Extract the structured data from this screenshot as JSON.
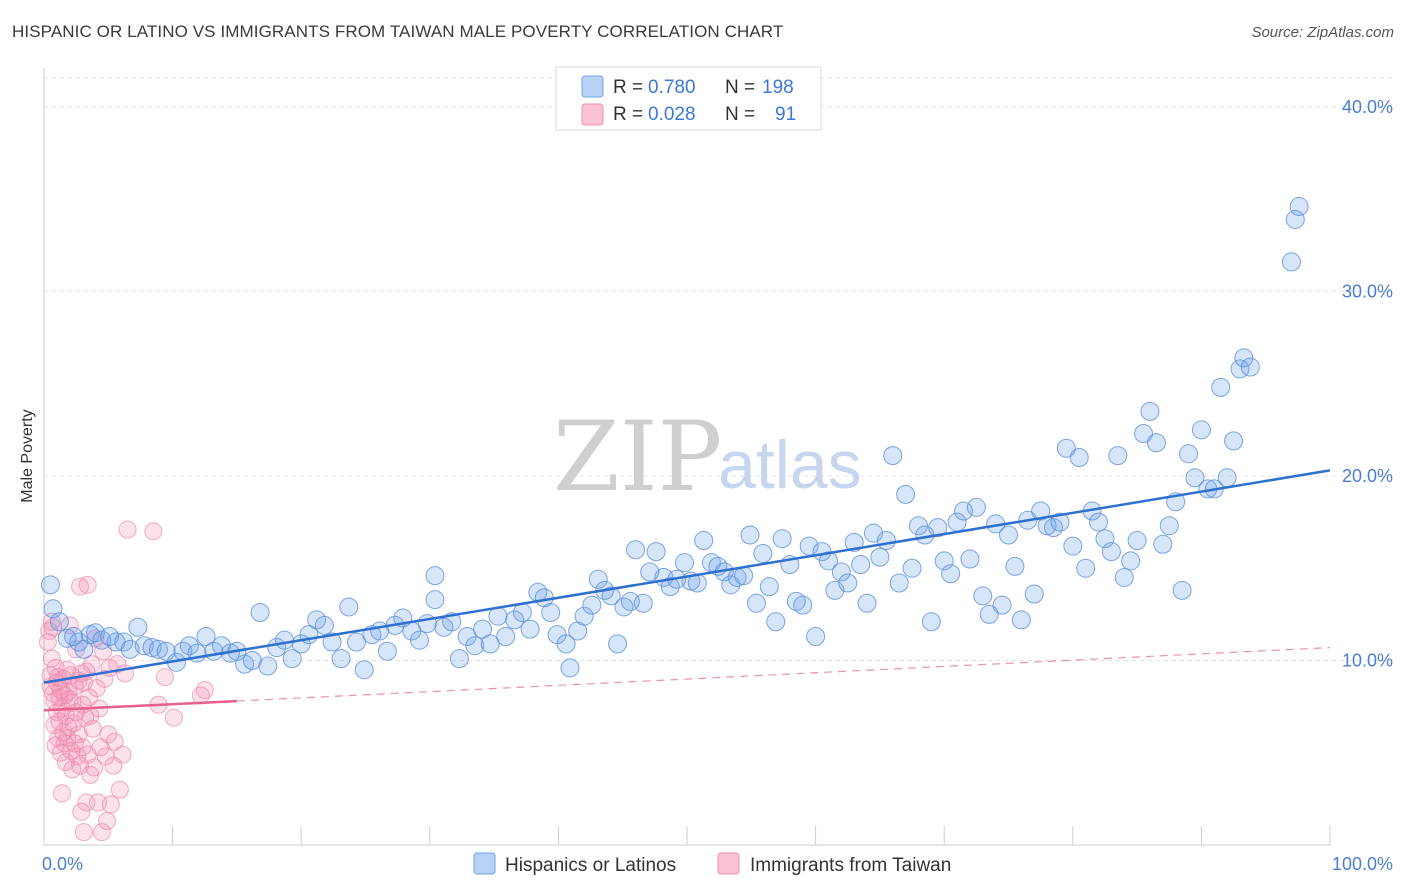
{
  "title": "HISPANIC OR LATINO VS IMMIGRANTS FROM TAIWAN MALE POVERTY CORRELATION CHART",
  "source": "Source: ZipAtlas.com",
  "watermark": {
    "zip": "ZIP",
    "atlas": "atlas"
  },
  "colors": {
    "blue": "#6fa3e8",
    "blue_line": "#2f6fd0",
    "pink": "#f08db0",
    "pink_line": "#e8608e",
    "grid": "#e0e0e0",
    "tick": "#4a7fd0"
  },
  "legend": {
    "rows": [
      {
        "r_label": "R =",
        "r_value": "0.780",
        "n_label": "N =",
        "n_value": "198"
      },
      {
        "r_label": "R =",
        "r_value": "0.028",
        "n_label": "N =",
        "n_value": "91"
      }
    ]
  },
  "chart_data": {
    "type": "scatter",
    "title": "HISPANIC OR LATINO VS IMMIGRANTS FROM TAIWAN MALE POVERTY CORRELATION CHART",
    "xlabel": "",
    "ylabel": "Male Poverty",
    "xlim": [
      0,
      100
    ],
    "ylim": [
      0,
      42
    ],
    "x_tick_labels": [
      "0.0%",
      "100.0%"
    ],
    "y_ticks": [
      10,
      20,
      30,
      40
    ],
    "y_tick_labels": [
      "10.0%",
      "20.0%",
      "30.0%",
      "40.0%"
    ],
    "grid": true,
    "legend_position": "top-center",
    "series": [
      {
        "name": "Hispanics or Latinos",
        "color": "#6fa3e8",
        "trend": {
          "x": [
            0,
            100
          ],
          "y": [
            8.8,
            20.3
          ]
        },
        "points": [
          [
            0.5,
            14.1
          ],
          [
            0.7,
            12.8
          ],
          [
            1.2,
            12.1
          ],
          [
            1.8,
            11.2
          ],
          [
            2.3,
            11.3
          ],
          [
            2.7,
            11.0
          ],
          [
            3.1,
            10.6
          ],
          [
            3.6,
            11.4
          ],
          [
            4.0,
            11.5
          ],
          [
            4.5,
            11.1
          ],
          [
            5.1,
            11.3
          ],
          [
            5.6,
            11.0
          ],
          [
            6.2,
            11.0
          ],
          [
            6.7,
            10.6
          ],
          [
            7.3,
            11.8
          ],
          [
            7.8,
            10.8
          ],
          [
            8.4,
            10.7
          ],
          [
            8.9,
            10.6
          ],
          [
            9.5,
            10.5
          ],
          [
            10.3,
            9.9
          ],
          [
            10.8,
            10.5
          ],
          [
            11.3,
            10.8
          ],
          [
            11.9,
            10.4
          ],
          [
            12.6,
            11.3
          ],
          [
            13.2,
            10.5
          ],
          [
            13.8,
            10.8
          ],
          [
            14.5,
            10.4
          ],
          [
            15.0,
            10.5
          ],
          [
            15.6,
            9.8
          ],
          [
            16.2,
            10.0
          ],
          [
            16.8,
            12.6
          ],
          [
            17.4,
            9.7
          ],
          [
            18.1,
            10.7
          ],
          [
            18.7,
            11.1
          ],
          [
            19.3,
            10.1
          ],
          [
            20.0,
            10.9
          ],
          [
            20.6,
            11.4
          ],
          [
            21.2,
            12.2
          ],
          [
            21.8,
            11.9
          ],
          [
            22.4,
            11.0
          ],
          [
            23.1,
            10.1
          ],
          [
            23.7,
            12.9
          ],
          [
            24.3,
            11.0
          ],
          [
            24.9,
            9.5
          ],
          [
            25.5,
            11.4
          ],
          [
            26.1,
            11.6
          ],
          [
            26.7,
            10.5
          ],
          [
            27.3,
            11.9
          ],
          [
            27.9,
            12.3
          ],
          [
            28.6,
            11.6
          ],
          [
            29.2,
            11.1
          ],
          [
            29.8,
            12.0
          ],
          [
            30.4,
            14.6
          ],
          [
            30.4,
            13.3
          ],
          [
            31.1,
            11.8
          ],
          [
            31.7,
            12.1
          ],
          [
            32.3,
            10.1
          ],
          [
            32.9,
            11.3
          ],
          [
            33.5,
            10.8
          ],
          [
            34.1,
            11.7
          ],
          [
            34.7,
            10.9
          ],
          [
            35.3,
            12.4
          ],
          [
            35.9,
            11.3
          ],
          [
            36.6,
            12.2
          ],
          [
            37.2,
            12.6
          ],
          [
            37.8,
            11.7
          ],
          [
            38.4,
            13.7
          ],
          [
            38.9,
            13.4
          ],
          [
            39.4,
            12.6
          ],
          [
            39.9,
            11.4
          ],
          [
            40.6,
            10.9
          ],
          [
            40.9,
            9.6
          ],
          [
            41.5,
            11.6
          ],
          [
            42.0,
            12.4
          ],
          [
            42.6,
            13.0
          ],
          [
            43.1,
            14.4
          ],
          [
            43.6,
            13.8
          ],
          [
            44.1,
            13.5
          ],
          [
            44.6,
            10.9
          ],
          [
            45.1,
            12.9
          ],
          [
            45.6,
            13.2
          ],
          [
            46.0,
            16.0
          ],
          [
            46.6,
            13.1
          ],
          [
            47.1,
            14.8
          ],
          [
            47.6,
            15.9
          ],
          [
            48.2,
            14.5
          ],
          [
            48.7,
            14.0
          ],
          [
            49.2,
            14.4
          ],
          [
            49.8,
            15.3
          ],
          [
            50.3,
            14.3
          ],
          [
            50.8,
            14.2
          ],
          [
            51.3,
            16.5
          ],
          [
            51.9,
            15.3
          ],
          [
            52.4,
            15.1
          ],
          [
            52.9,
            14.8
          ],
          [
            53.4,
            14.1
          ],
          [
            53.9,
            14.5
          ],
          [
            54.4,
            14.6
          ],
          [
            54.9,
            16.8
          ],
          [
            55.4,
            13.1
          ],
          [
            55.9,
            15.8
          ],
          [
            56.4,
            14.0
          ],
          [
            56.9,
            12.1
          ],
          [
            57.4,
            16.6
          ],
          [
            58.0,
            15.2
          ],
          [
            58.5,
            13.2
          ],
          [
            59.0,
            13.0
          ],
          [
            59.5,
            16.2
          ],
          [
            60.0,
            11.3
          ],
          [
            60.5,
            15.9
          ],
          [
            61.0,
            15.4
          ],
          [
            61.5,
            13.8
          ],
          [
            62.0,
            14.8
          ],
          [
            62.5,
            14.2
          ],
          [
            63.0,
            16.4
          ],
          [
            63.5,
            15.2
          ],
          [
            64.0,
            13.1
          ],
          [
            64.5,
            16.9
          ],
          [
            65.0,
            15.6
          ],
          [
            65.5,
            16.5
          ],
          [
            66.0,
            21.1
          ],
          [
            66.5,
            14.2
          ],
          [
            67.0,
            19.0
          ],
          [
            67.5,
            15.0
          ],
          [
            68.0,
            17.3
          ],
          [
            68.5,
            16.8
          ],
          [
            69.0,
            12.1
          ],
          [
            69.5,
            17.2
          ],
          [
            70.0,
            15.4
          ],
          [
            70.5,
            14.7
          ],
          [
            71.0,
            17.5
          ],
          [
            71.5,
            18.1
          ],
          [
            72.0,
            15.5
          ],
          [
            72.5,
            18.3
          ],
          [
            73.0,
            13.5
          ],
          [
            73.5,
            12.5
          ],
          [
            74.0,
            17.4
          ],
          [
            74.5,
            13.0
          ],
          [
            75.0,
            16.8
          ],
          [
            75.5,
            15.1
          ],
          [
            76.0,
            12.2
          ],
          [
            76.5,
            17.6
          ],
          [
            77.0,
            13.6
          ],
          [
            77.5,
            18.1
          ],
          [
            78.0,
            17.3
          ],
          [
            78.5,
            17.2
          ],
          [
            79.0,
            17.5
          ],
          [
            79.5,
            21.5
          ],
          [
            80.0,
            16.2
          ],
          [
            80.5,
            21.0
          ],
          [
            81.0,
            15.0
          ],
          [
            81.5,
            18.1
          ],
          [
            82.0,
            17.5
          ],
          [
            82.5,
            16.6
          ],
          [
            83.0,
            15.9
          ],
          [
            83.5,
            21.1
          ],
          [
            84.0,
            14.5
          ],
          [
            84.5,
            15.4
          ],
          [
            85.0,
            16.5
          ],
          [
            85.5,
            22.3
          ],
          [
            86.0,
            23.5
          ],
          [
            86.5,
            21.8
          ],
          [
            87.0,
            16.3
          ],
          [
            87.5,
            17.3
          ],
          [
            88.0,
            18.6
          ],
          [
            88.5,
            13.8
          ],
          [
            89.0,
            21.2
          ],
          [
            89.5,
            19.9
          ],
          [
            90.0,
            22.5
          ],
          [
            90.5,
            19.3
          ],
          [
            91.0,
            19.3
          ],
          [
            91.5,
            24.8
          ],
          [
            92.0,
            19.9
          ],
          [
            92.5,
            21.9
          ],
          [
            93.0,
            25.8
          ],
          [
            93.3,
            26.4
          ],
          [
            93.8,
            25.9
          ],
          [
            97.0,
            31.6
          ],
          [
            97.3,
            33.9
          ],
          [
            97.6,
            34.6
          ]
        ]
      },
      {
        "name": "Immigrants from Taiwan",
        "color": "#f08db0",
        "trend_solid": {
          "x": [
            0,
            15
          ],
          "y": [
            7.3,
            7.8
          ]
        },
        "trend_dashed": {
          "x": [
            15,
            100
          ],
          "y": [
            7.8,
            10.7
          ]
        },
        "points": [
          [
            0.3,
            11.0
          ],
          [
            0.4,
            11.6
          ],
          [
            0.5,
            9.2
          ],
          [
            0.5,
            8.6
          ],
          [
            0.6,
            10.1
          ],
          [
            0.6,
            12.1
          ],
          [
            0.7,
            8.2
          ],
          [
            0.7,
            11.8
          ],
          [
            0.8,
            7.8
          ],
          [
            0.8,
            6.5
          ],
          [
            0.9,
            9.6
          ],
          [
            0.9,
            5.4
          ],
          [
            1.0,
            8.8
          ],
          [
            1.0,
            7.2
          ],
          [
            1.1,
            5.8
          ],
          [
            1.1,
            9.1
          ],
          [
            1.2,
            8.0
          ],
          [
            1.2,
            6.7
          ],
          [
            1.3,
            5.0
          ],
          [
            1.3,
            8.4
          ],
          [
            1.4,
            7.4
          ],
          [
            1.4,
            2.8
          ],
          [
            1.5,
            9.0
          ],
          [
            1.5,
            6.1
          ],
          [
            1.6,
            5.5
          ],
          [
            1.6,
            8.1
          ],
          [
            1.7,
            7.0
          ],
          [
            1.7,
            4.5
          ],
          [
            1.8,
            9.5
          ],
          [
            1.8,
            5.8
          ],
          [
            1.9,
            8.3
          ],
          [
            1.9,
            6.4
          ],
          [
            2.0,
            11.9
          ],
          [
            2.0,
            7.9
          ],
          [
            2.1,
            5.1
          ],
          [
            2.1,
            9.2
          ],
          [
            2.2,
            7.7
          ],
          [
            2.2,
            4.1
          ],
          [
            2.3,
            6.6
          ],
          [
            2.4,
            8.6
          ],
          [
            2.4,
            5.5
          ],
          [
            2.5,
            10.6
          ],
          [
            2.5,
            7.2
          ],
          [
            2.6,
            4.8
          ],
          [
            2.7,
            8.9
          ],
          [
            2.7,
            6.0
          ],
          [
            2.8,
            14.0
          ],
          [
            2.8,
            4.3
          ],
          [
            2.9,
            9.3
          ],
          [
            2.9,
            1.8
          ],
          [
            3.0,
            7.6
          ],
          [
            3.0,
            5.3
          ],
          [
            3.1,
            8.8
          ],
          [
            3.1,
            0.7
          ],
          [
            3.2,
            6.9
          ],
          [
            3.3,
            9.4
          ],
          [
            3.3,
            2.3
          ],
          [
            3.4,
            14.1
          ],
          [
            3.4,
            4.9
          ],
          [
            3.5,
            8.0
          ],
          [
            3.6,
            7.0
          ],
          [
            3.6,
            3.8
          ],
          [
            3.7,
            9.8
          ],
          [
            3.8,
            6.3
          ],
          [
            3.9,
            4.2
          ],
          [
            4.0,
            11.2
          ],
          [
            4.1,
            8.5
          ],
          [
            4.2,
            2.3
          ],
          [
            4.3,
            7.4
          ],
          [
            4.4,
            5.3
          ],
          [
            4.5,
            0.7
          ],
          [
            4.6,
            10.5
          ],
          [
            4.7,
            9.0
          ],
          [
            4.8,
            4.8
          ],
          [
            4.9,
            1.3
          ],
          [
            5.0,
            6.0
          ],
          [
            5.1,
            9.6
          ],
          [
            5.2,
            2.2
          ],
          [
            5.4,
            4.3
          ],
          [
            5.5,
            5.6
          ],
          [
            5.7,
            9.8
          ],
          [
            5.9,
            3.0
          ],
          [
            6.1,
            4.9
          ],
          [
            6.3,
            9.3
          ],
          [
            6.5,
            17.1
          ],
          [
            8.5,
            17.0
          ],
          [
            8.9,
            7.6
          ],
          [
            9.4,
            9.1
          ],
          [
            10.1,
            6.9
          ],
          [
            12.2,
            8.1
          ],
          [
            12.5,
            8.4
          ]
        ]
      }
    ]
  },
  "bottom_legend": {
    "items": [
      "Hispanics or Latinos",
      "Immigrants from Taiwan"
    ]
  }
}
